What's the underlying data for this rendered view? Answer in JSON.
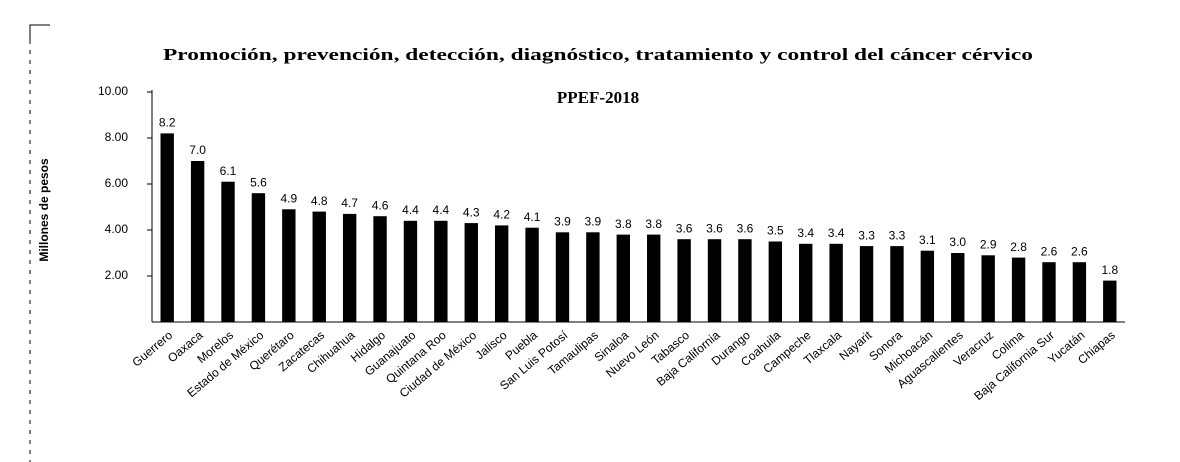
{
  "chart_data": {
    "type": "bar",
    "title": "Promoción, prevención, detección, diagnóstico, tratamiento y control del cáncer cérvico",
    "subtitle": "PPEF-2018",
    "y_label": "Millones de pesos",
    "categories": [
      "Guerrero",
      "Oaxaca",
      "Morelos",
      "Estado de México",
      "Querétaro",
      "Zacatecas",
      "Chihuahua",
      "Hidalgo",
      "Guanajuato",
      "Quintana Roo",
      "Ciudad de México",
      "Jalisco",
      "Puebla",
      "San Luis Potosí",
      "Tamaulipas",
      "Sinaloa",
      "Nuevo León",
      "Tabasco",
      "Baja California",
      "Durango",
      "Coahuila",
      "Campeche",
      "Tlaxcala",
      "Nayarit",
      "Sonora",
      "Michoacán",
      "Aguascalientes",
      "Veracruz",
      "Colima",
      "Baja California Sur",
      "Yucatán",
      "Chiapas"
    ],
    "values": [
      8.2,
      7.0,
      6.1,
      5.6,
      4.9,
      4.8,
      4.7,
      4.6,
      4.4,
      4.4,
      4.3,
      4.2,
      4.1,
      3.9,
      3.9,
      3.8,
      3.8,
      3.6,
      3.6,
      3.6,
      3.5,
      3.4,
      3.4,
      3.3,
      3.3,
      3.1,
      3.0,
      2.9,
      2.8,
      2.6,
      2.6,
      1.8
    ],
    "value_labels": [
      "8.2",
      "7.0",
      "6.1",
      "5.6",
      "4.9",
      "4.8",
      "4.7",
      "4.6",
      "4.4",
      "4.4",
      "4.3",
      "4.2",
      "4.1",
      "3.9",
      "3.9",
      "3.8",
      "3.8",
      "3.6",
      "3.6",
      "3.6",
      "3.5",
      "3.4",
      "3.4",
      "3.3",
      "3.3",
      "3.1",
      "3.0",
      "2.9",
      "2.8",
      "2.6",
      "2.6",
      "1.8"
    ],
    "color": "#000000",
    "ylim": [
      0,
      10
    ],
    "yticks": [
      {
        "value": 2,
        "label": "2.00"
      },
      {
        "value": 4,
        "label": "4.00"
      },
      {
        "value": 6,
        "label": "6.00"
      },
      {
        "value": 8,
        "label": "8.00"
      },
      {
        "value": 10,
        "label": "10.00"
      }
    ],
    "grid": false
  }
}
